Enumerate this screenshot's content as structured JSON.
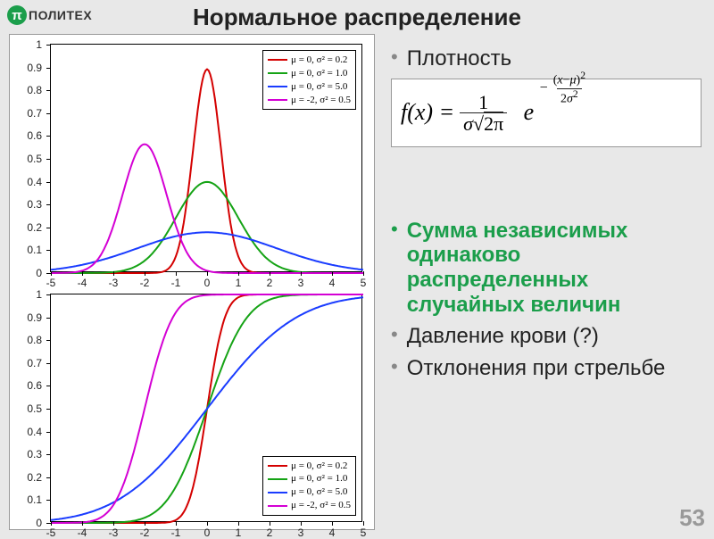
{
  "logo": {
    "symbol": "π",
    "text": "ПОЛИТЕХ"
  },
  "title": "Нормальное распределение",
  "page_number": "53",
  "bullets": [
    {
      "text": "Плотность",
      "green": false
    },
    {
      "text": "Сумма независимых одинаково распределенных случайных величин",
      "green": true
    },
    {
      "text": "Давление крови (?)",
      "green": false
    },
    {
      "text": "Отклонения при стрельбе",
      "green": false
    }
  ],
  "formula": {
    "lhs": "f(x) =",
    "frac_num": "1",
    "frac_den": "σ√(2π)",
    "e": "e",
    "exp_neg": "−",
    "exp_num": "(x−μ)²",
    "exp_den": "2σ²"
  },
  "chart": {
    "xlim": [
      -5,
      5
    ],
    "xticks": [
      -5,
      -4,
      -3,
      -2,
      -1,
      0,
      1,
      2,
      3,
      4,
      5
    ],
    "pdf": {
      "ylim": [
        0,
        1
      ],
      "yticks": [
        0,
        0.1,
        0.2,
        0.3,
        0.4,
        0.5,
        0.6,
        0.7,
        0.8,
        0.9,
        1
      ]
    },
    "cdf": {
      "ylim": [
        0,
        1
      ],
      "yticks": [
        0,
        0.1,
        0.2,
        0.3,
        0.4,
        0.5,
        0.6,
        0.7,
        0.8,
        0.9,
        1
      ]
    },
    "series": [
      {
        "mu": 0,
        "sigma2": 0.2,
        "color": "#d40000",
        "label": "μ = 0, σ² = 0.2"
      },
      {
        "mu": 0,
        "sigma2": 1.0,
        "color": "#15a315",
        "label": "μ = 0, σ² = 1.0"
      },
      {
        "mu": 0,
        "sigma2": 5.0,
        "color": "#1a3cff",
        "label": "μ = 0, σ² = 5.0"
      },
      {
        "mu": -2,
        "sigma2": 0.5,
        "color": "#d400d4",
        "label": "μ = -2, σ² = 0.5"
      }
    ],
    "axis_fontsize": 12,
    "legend_fontsize": 11,
    "line_width": 2,
    "grid": false,
    "background_color": "#ffffff",
    "border_color": "#000000"
  }
}
